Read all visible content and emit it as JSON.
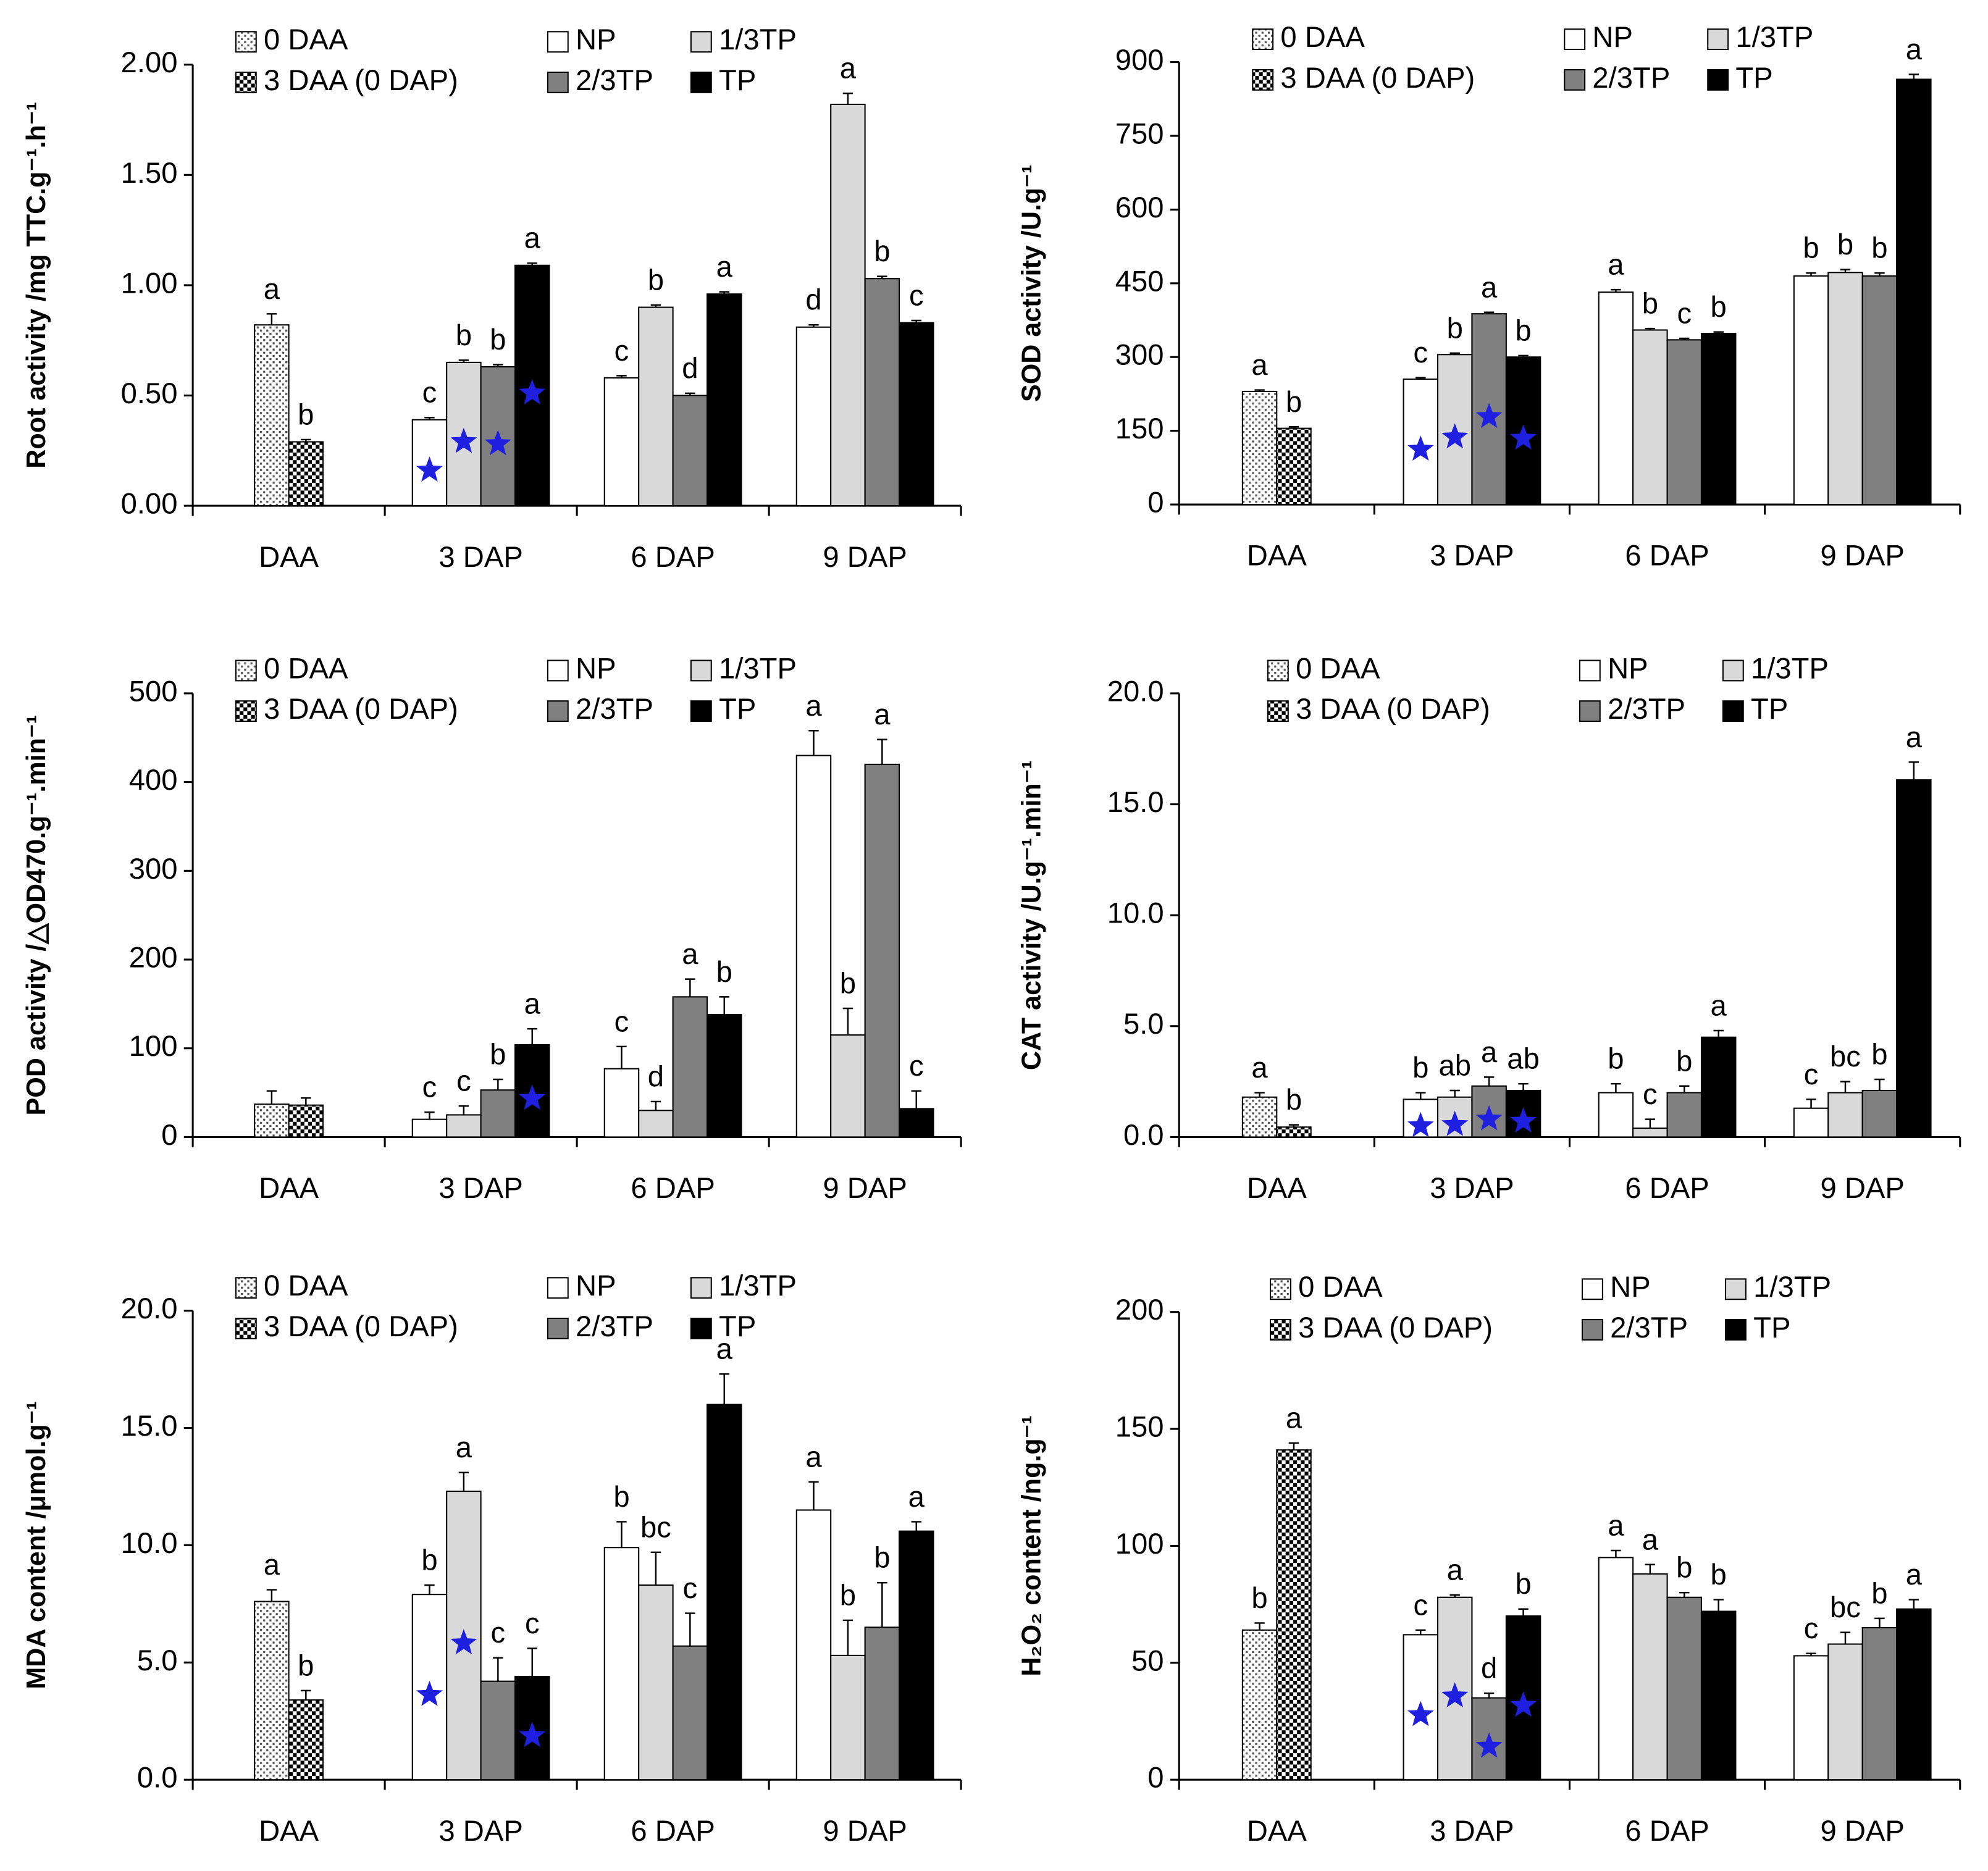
{
  "chart_data": [
    {
      "type": "bar",
      "ylabel": "Root activity /mg TTC.g⁻¹.h⁻¹",
      "categories": [
        "DAA",
        "3 DAP",
        "6 DAP",
        "9 DAP"
      ],
      "ylim": [
        0,
        2
      ],
      "yticks": [
        {
          "value": 0,
          "label": "0.00"
        },
        {
          "value": 0.5,
          "label": "0.50"
        },
        {
          "value": 1,
          "label": "1.00"
        },
        {
          "value": 1.5,
          "label": "1.50"
        },
        {
          "value": 2,
          "label": "2.00"
        }
      ],
      "series": [
        {
          "name": "0 DAA",
          "color": "#ffffff",
          "pattern": "dots",
          "values": [
            0.82,
            null,
            null,
            null
          ],
          "errors": [
            0.05,
            null,
            null,
            null
          ],
          "labels": [
            "a",
            null,
            null,
            null
          ]
        },
        {
          "name": "3 DAA (0 DAP)",
          "color": "#ffffff",
          "pattern": "checker",
          "values": [
            0.29,
            null,
            null,
            null
          ],
          "errors": [
            0.01,
            null,
            null,
            null
          ],
          "labels": [
            "b",
            null,
            null,
            null
          ]
        },
        {
          "name": "NP",
          "color": "#ffffff",
          "values": [
            null,
            0.39,
            0.58,
            0.81
          ],
          "errors": [
            null,
            0.01,
            0.01,
            0.01
          ],
          "labels": [
            null,
            "c",
            "c",
            "d"
          ],
          "stars": [
            false,
            true,
            false,
            false
          ]
        },
        {
          "name": "1/3TP",
          "color": "#d9d9d9",
          "values": [
            null,
            0.65,
            0.9,
            1.82
          ],
          "errors": [
            null,
            0.01,
            0.01,
            0.05
          ],
          "labels": [
            null,
            "b",
            "b",
            "a"
          ],
          "stars": [
            false,
            true,
            false,
            false
          ]
        },
        {
          "name": "2/3TP",
          "color": "#808080",
          "values": [
            null,
            0.63,
            0.5,
            1.03
          ],
          "errors": [
            null,
            0.01,
            0.01,
            0.01
          ],
          "labels": [
            null,
            "b",
            "d",
            "b"
          ],
          "stars": [
            false,
            true,
            false,
            false
          ]
        },
        {
          "name": "TP",
          "color": "#000000",
          "values": [
            null,
            1.09,
            0.96,
            0.83
          ],
          "errors": [
            null,
            0.01,
            0.01,
            0.01
          ],
          "labels": [
            null,
            "a",
            "a",
            "c"
          ],
          "stars": [
            false,
            true,
            false,
            false
          ]
        }
      ]
    },
    {
      "type": "bar",
      "ylabel": "SOD activity /U.g⁻¹",
      "categories": [
        "DAA",
        "3 DAP",
        "6 DAP",
        "9 DAP"
      ],
      "ylim": [
        0,
        900
      ],
      "yticks": [
        0,
        150,
        300,
        450,
        600,
        750,
        900
      ],
      "series": [
        {
          "name": "0 DAA",
          "color": "#ffffff",
          "pattern": "dots",
          "values": [
            230,
            null,
            null,
            null
          ],
          "errors": [
            3,
            null,
            null,
            null
          ],
          "labels": [
            "a",
            null,
            null,
            null
          ]
        },
        {
          "name": "3 DAA (0 DAP)",
          "color": "#ffffff",
          "pattern": "checker",
          "values": [
            155,
            null,
            null,
            null
          ],
          "errors": [
            3,
            null,
            null,
            null
          ],
          "labels": [
            "b",
            null,
            null,
            null
          ]
        },
        {
          "name": "NP",
          "color": "#ffffff",
          "values": [
            null,
            255,
            432,
            465
          ],
          "errors": [
            null,
            3,
            5,
            6
          ],
          "labels": [
            null,
            "c",
            "a",
            "b"
          ],
          "stars": [
            false,
            true,
            false,
            false
          ]
        },
        {
          "name": "1/3TP",
          "color": "#d9d9d9",
          "values": [
            null,
            305,
            355,
            472
          ],
          "errors": [
            null,
            3,
            3,
            6
          ],
          "labels": [
            null,
            "b",
            "b",
            "b"
          ],
          "stars": [
            false,
            true,
            false,
            false
          ]
        },
        {
          "name": "2/3TP",
          "color": "#808080",
          "values": [
            null,
            388,
            335,
            465
          ],
          "errors": [
            null,
            3,
            3,
            6
          ],
          "labels": [
            null,
            "a",
            "c",
            "b"
          ],
          "stars": [
            false,
            true,
            false,
            false
          ]
        },
        {
          "name": "TP",
          "color": "#000000",
          "values": [
            null,
            300,
            348,
            865
          ],
          "errors": [
            null,
            3,
            3,
            10
          ],
          "labels": [
            null,
            "b",
            "b",
            "a"
          ],
          "stars": [
            false,
            true,
            false,
            false
          ]
        }
      ]
    },
    {
      "type": "bar",
      "ylabel": "POD activity /△OD470.g⁻¹.min⁻¹",
      "categories": [
        "DAA",
        "3 DAP",
        "6 DAP",
        "9 DAP"
      ],
      "ylim": [
        0,
        500
      ],
      "yticks": [
        0,
        100,
        200,
        300,
        400,
        500
      ],
      "series": [
        {
          "name": "0 DAA",
          "color": "#ffffff",
          "pattern": "dots",
          "values": [
            37,
            null,
            null,
            null
          ],
          "errors": [
            15,
            null,
            null,
            null
          ],
          "labels": [
            null,
            null,
            null,
            null
          ]
        },
        {
          "name": "3 DAA (0 DAP)",
          "color": "#ffffff",
          "pattern": "checker",
          "values": [
            36,
            null,
            null,
            null
          ],
          "errors": [
            8,
            null,
            null,
            null
          ],
          "labels": [
            null,
            null,
            null,
            null
          ]
        },
        {
          "name": "NP",
          "color": "#ffffff",
          "values": [
            null,
            20,
            77,
            430
          ],
          "errors": [
            null,
            8,
            25,
            28
          ],
          "labels": [
            null,
            "c",
            "c",
            "a"
          ],
          "stars": [
            false,
            false,
            false,
            false
          ]
        },
        {
          "name": "1/3TP",
          "color": "#d9d9d9",
          "values": [
            null,
            25,
            30,
            115
          ],
          "errors": [
            null,
            10,
            10,
            30
          ],
          "labels": [
            null,
            "c",
            "d",
            "b"
          ],
          "stars": [
            false,
            false,
            false,
            false
          ]
        },
        {
          "name": "2/3TP",
          "color": "#808080",
          "values": [
            null,
            53,
            158,
            420
          ],
          "errors": [
            null,
            12,
            20,
            28
          ],
          "labels": [
            null,
            "b",
            "a",
            "a"
          ],
          "stars": [
            false,
            false,
            false,
            false
          ]
        },
        {
          "name": "TP",
          "color": "#000000",
          "values": [
            null,
            104,
            138,
            32
          ],
          "errors": [
            null,
            18,
            20,
            20
          ],
          "labels": [
            null,
            "a",
            "b",
            "c"
          ],
          "stars": [
            false,
            true,
            false,
            false
          ]
        }
      ]
    },
    {
      "type": "bar",
      "ylabel": "CAT activity /U.g⁻¹.min⁻¹",
      "categories": [
        "DAA",
        "3 DAP",
        "6 DAP",
        "9 DAP"
      ],
      "ylim": [
        0,
        20
      ],
      "yticks": [
        {
          "value": 0,
          "label": "0.0"
        },
        {
          "value": 5,
          "label": "5.0"
        },
        {
          "value": 10,
          "label": "10.0"
        },
        {
          "value": 15,
          "label": "15.0"
        },
        {
          "value": 20,
          "label": "20.0"
        }
      ],
      "series": [
        {
          "name": "0 DAA",
          "color": "#ffffff",
          "pattern": "dots",
          "values": [
            1.8,
            null,
            null,
            null
          ],
          "errors": [
            0.2,
            null,
            null,
            null
          ],
          "labels": [
            "a",
            null,
            null,
            null
          ]
        },
        {
          "name": "3 DAA (0 DAP)",
          "color": "#ffffff",
          "pattern": "checker",
          "values": [
            0.45,
            null,
            null,
            null
          ],
          "errors": [
            0.1,
            null,
            null,
            null
          ],
          "labels": [
            "b",
            null,
            null,
            null
          ]
        },
        {
          "name": "NP",
          "color": "#ffffff",
          "values": [
            null,
            1.7,
            2.0,
            1.3
          ],
          "errors": [
            null,
            0.3,
            0.4,
            0.4
          ],
          "labels": [
            null,
            "b",
            "b",
            "c"
          ],
          "stars": [
            false,
            true,
            false,
            false
          ]
        },
        {
          "name": "1/3TP",
          "color": "#d9d9d9",
          "values": [
            null,
            1.8,
            0.4,
            2.0
          ],
          "errors": [
            null,
            0.3,
            0.4,
            0.5
          ],
          "labels": [
            null,
            "ab",
            "c",
            "bc"
          ],
          "stars": [
            false,
            true,
            false,
            false
          ]
        },
        {
          "name": "2/3TP",
          "color": "#808080",
          "values": [
            null,
            2.3,
            2.0,
            2.1
          ],
          "errors": [
            null,
            0.4,
            0.3,
            0.5
          ],
          "labels": [
            null,
            "a",
            "b",
            "b"
          ],
          "stars": [
            false,
            true,
            false,
            false
          ]
        },
        {
          "name": "TP",
          "color": "#000000",
          "values": [
            null,
            2.1,
            4.5,
            16.1
          ],
          "errors": [
            null,
            0.3,
            0.3,
            0.8
          ],
          "labels": [
            null,
            "ab",
            "a",
            "a"
          ],
          "stars": [
            false,
            true,
            false,
            false
          ]
        }
      ]
    },
    {
      "type": "bar",
      "ylabel": "MDA content /μmol.g⁻¹",
      "categories": [
        "DAA",
        "3 DAP",
        "6 DAP",
        "9 DAP"
      ],
      "ylim": [
        0,
        20
      ],
      "yticks": [
        {
          "value": 0,
          "label": "0.0"
        },
        {
          "value": 5,
          "label": "5.0"
        },
        {
          "value": 10,
          "label": "10.0"
        },
        {
          "value": 15,
          "label": "15.0"
        },
        {
          "value": 20,
          "label": "20.0"
        }
      ],
      "series": [
        {
          "name": "0 DAA",
          "color": "#ffffff",
          "pattern": "dots",
          "values": [
            7.6,
            null,
            null,
            null
          ],
          "errors": [
            0.5,
            null,
            null,
            null
          ],
          "labels": [
            "a",
            null,
            null,
            null
          ]
        },
        {
          "name": "3 DAA (0 DAP)",
          "color": "#ffffff",
          "pattern": "checker",
          "values": [
            3.4,
            null,
            null,
            null
          ],
          "errors": [
            0.4,
            null,
            null,
            null
          ],
          "labels": [
            "b",
            null,
            null,
            null
          ]
        },
        {
          "name": "NP",
          "color": "#ffffff",
          "values": [
            null,
            7.9,
            9.9,
            11.5
          ],
          "errors": [
            null,
            0.4,
            1.1,
            1.2
          ],
          "labels": [
            null,
            "b",
            "b",
            "a"
          ],
          "stars": [
            false,
            true,
            false,
            false
          ]
        },
        {
          "name": "1/3TP",
          "color": "#d9d9d9",
          "values": [
            null,
            12.3,
            8.3,
            5.3
          ],
          "errors": [
            null,
            0.8,
            1.4,
            1.5
          ],
          "labels": [
            null,
            "a",
            "bc",
            "b"
          ],
          "stars": [
            false,
            true,
            false,
            false
          ]
        },
        {
          "name": "2/3TP",
          "color": "#808080",
          "values": [
            null,
            4.2,
            5.7,
            6.5
          ],
          "errors": [
            null,
            1.0,
            1.4,
            1.9
          ],
          "labels": [
            null,
            "c",
            "c",
            "b"
          ],
          "stars": [
            false,
            false,
            false,
            false
          ]
        },
        {
          "name": "TP",
          "color": "#000000",
          "values": [
            null,
            4.4,
            16.0,
            10.6
          ],
          "errors": [
            null,
            1.2,
            1.3,
            0.4
          ],
          "labels": [
            null,
            "c",
            "a",
            "a"
          ],
          "stars": [
            false,
            true,
            false,
            false
          ]
        }
      ]
    },
    {
      "type": "bar",
      "ylabel": "H₂O₂ content /ng.g⁻¹",
      "categories": [
        "DAA",
        "3 DAP",
        "6 DAP",
        "9 DAP"
      ],
      "ylim": [
        0,
        200
      ],
      "yticks": [
        0,
        50,
        100,
        150,
        200
      ],
      "series": [
        {
          "name": "0 DAA",
          "color": "#ffffff",
          "pattern": "dots",
          "values": [
            64,
            null,
            null,
            null
          ],
          "errors": [
            3,
            null,
            null,
            null
          ],
          "labels": [
            "b",
            null,
            null,
            null
          ]
        },
        {
          "name": "3 DAA (0 DAP)",
          "color": "#ffffff",
          "pattern": "checker",
          "values": [
            141,
            null,
            null,
            null
          ],
          "errors": [
            3,
            null,
            null,
            null
          ],
          "labels": [
            "a",
            null,
            null,
            null
          ]
        },
        {
          "name": "NP",
          "color": "#ffffff",
          "values": [
            null,
            62,
            95,
            53
          ],
          "errors": [
            null,
            2,
            3,
            1
          ],
          "labels": [
            null,
            "c",
            "a",
            "c"
          ],
          "stars": [
            false,
            true,
            false,
            false
          ]
        },
        {
          "name": "1/3TP",
          "color": "#d9d9d9",
          "values": [
            null,
            78,
            88,
            58
          ],
          "errors": [
            null,
            1,
            4,
            5
          ],
          "labels": [
            null,
            "a",
            "a",
            "bc"
          ],
          "stars": [
            false,
            true,
            false,
            false
          ]
        },
        {
          "name": "2/3TP",
          "color": "#808080",
          "values": [
            null,
            35,
            78,
            65
          ],
          "errors": [
            null,
            2,
            2,
            4
          ],
          "labels": [
            null,
            "d",
            "b",
            "b"
          ],
          "stars": [
            false,
            true,
            false,
            false
          ]
        },
        {
          "name": "TP",
          "color": "#000000",
          "values": [
            null,
            70,
            72,
            73
          ],
          "errors": [
            null,
            3,
            5,
            4
          ],
          "labels": [
            null,
            "b",
            "b",
            "a"
          ],
          "stars": [
            false,
            true,
            false,
            false
          ]
        }
      ]
    }
  ]
}
